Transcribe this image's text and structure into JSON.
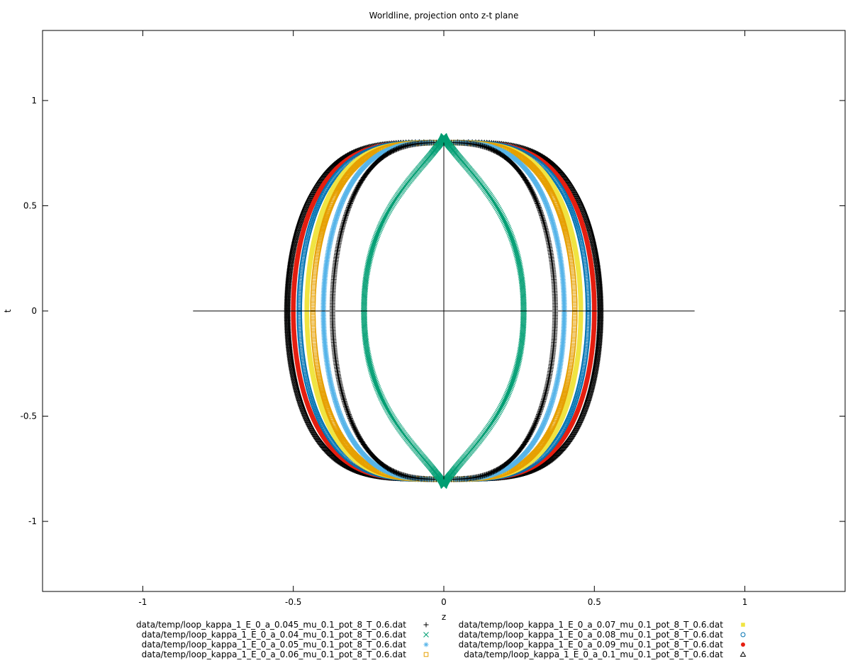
{
  "chart_data": {
    "type": "scatter",
    "title": "Worldline, projection onto z-t plane",
    "xlabel": "z",
    "ylabel": "t",
    "xlim": [
      -1.333,
      1.333
    ],
    "ylim": [
      -1.333,
      1.333
    ],
    "xticks": [
      {
        "value": -1,
        "label": "-1"
      },
      {
        "value": -0.5,
        "label": "-0.5"
      },
      {
        "value": 0,
        "label": "0"
      },
      {
        "value": 0.5,
        "label": "0.5"
      },
      {
        "value": 1,
        "label": "1"
      }
    ],
    "yticks": [
      {
        "value": 1,
        "label": "1"
      },
      {
        "value": 0.5,
        "label": "0.5"
      },
      {
        "value": 0,
        "label": "0"
      },
      {
        "value": -0.5,
        "label": "-0.5"
      },
      {
        "value": -1,
        "label": "-1"
      }
    ],
    "zero_axes": {
      "z_range": [
        -0.833,
        0.833
      ],
      "t_range": [
        -0.8,
        0.8
      ]
    },
    "grid": false,
    "legend_position": "bottom",
    "series": [
      {
        "name": "data/temp/loop_kappa_1_E_0_a_0.045_mu_0.1_pot_8_T_0.6.dat",
        "marker": "plus",
        "color": "#000000",
        "t_max": 0.8,
        "z_max": 0.37,
        "shape_exp": 1.5
      },
      {
        "name": "data/temp/loop_kappa_1_E_0_a_0.04_mu_0.1_pot_8_T_0.6.dat",
        "marker": "cross",
        "color": "#009e73",
        "t_max": 0.83,
        "z_max": 0.265,
        "shape_exp": 0.55
      },
      {
        "name": "data/temp/loop_kappa_1_E_0_a_0.05_mu_0.1_pot_8_T_0.6.dat",
        "marker": "asterisk",
        "color": "#56b4e9",
        "t_max": 0.8,
        "z_max": 0.4,
        "shape_exp": 1.6
      },
      {
        "name": "data/temp/loop_kappa_1_E_0_a_0.06_mu_0.1_pot_8_T_0.6.dat",
        "marker": "open-square",
        "color": "#e69f00",
        "t_max": 0.8,
        "z_max": 0.435,
        "shape_exp": 1.7
      },
      {
        "name": "data/temp/loop_kappa_1_E_0_a_0.07_mu_0.1_pot_8_T_0.6.dat",
        "marker": "filled-square",
        "color": "#f0e442",
        "t_max": 0.8,
        "z_max": 0.455,
        "shape_exp": 1.75
      },
      {
        "name": "data/temp/loop_kappa_1_E_0_a_0.08_mu_0.1_pot_8_T_0.6.dat",
        "marker": "open-circle",
        "color": "#0072b2",
        "t_max": 0.8,
        "z_max": 0.48,
        "shape_exp": 1.8
      },
      {
        "name": "data/temp/loop_kappa_1_E_0_a_0.09_mu_0.1_pot_8_T_0.6.dat",
        "marker": "filled-circle",
        "color": "#e51e10",
        "t_max": 0.8,
        "z_max": 0.5,
        "shape_exp": 1.85
      },
      {
        "name": "data/temp/loop_kappa_1_E_0_a_0.1_mu_0.1_pot_8_T_0.6.dat",
        "marker": "open-triangle",
        "color": "#000000",
        "t_max": 0.8,
        "z_max": 0.52,
        "shape_exp": 1.95
      }
    ]
  }
}
